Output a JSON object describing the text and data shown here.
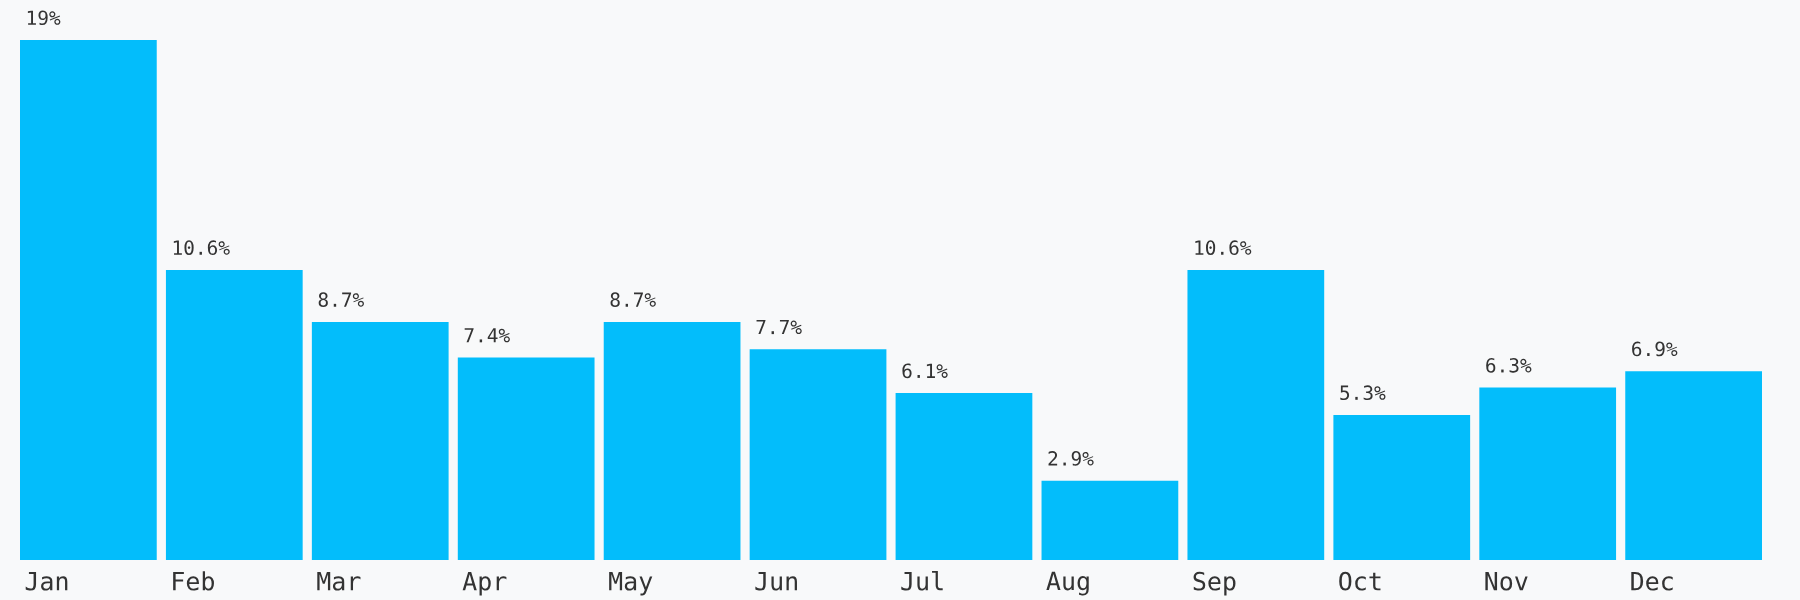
{
  "chart_data": {
    "type": "bar",
    "categories": [
      "Jan",
      "Feb",
      "Mar",
      "Apr",
      "May",
      "Jun",
      "Jul",
      "Aug",
      "Sep",
      "Oct",
      "Nov",
      "Dec"
    ],
    "values": [
      19,
      10.6,
      8.7,
      7.4,
      8.7,
      7.7,
      6.1,
      2.9,
      10.6,
      5.3,
      6.3,
      6.9
    ],
    "value_labels": [
      "19%",
      "10.6%",
      "8.7%",
      "7.4%",
      "8.7%",
      "7.7%",
      "6.1%",
      "2.9%",
      "10.6%",
      "5.3%",
      "6.3%",
      "6.9%"
    ],
    "color": "#03bdfb",
    "tick_labels": "x",
    "grid": false,
    "legend": false
  }
}
